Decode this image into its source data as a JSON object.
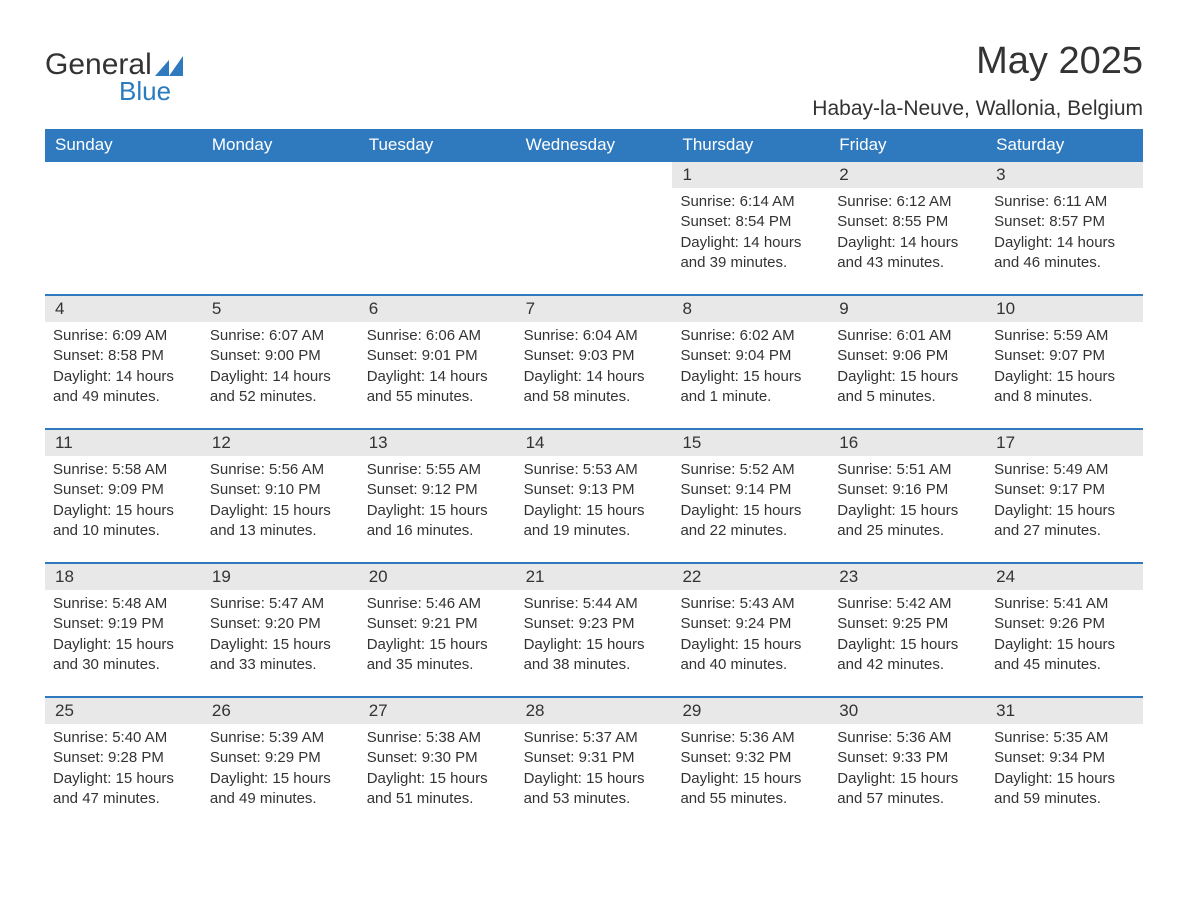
{
  "logo": {
    "word1": "General",
    "word2": "Blue",
    "icon_color": "#2f7abf"
  },
  "title": "May 2025",
  "subtitle": "Habay-la-Neuve, Wallonia, Belgium",
  "colors": {
    "header_bg": "#2f7abf",
    "header_text": "#ffffff",
    "row_divider": "#2f7abf",
    "daynum_bg": "#e8e8e8",
    "text": "#333333",
    "background": "#ffffff"
  },
  "typography": {
    "title_fontsize": 38,
    "subtitle_fontsize": 21,
    "dayheader_fontsize": 17,
    "daynum_fontsize": 17,
    "details_fontsize": 15
  },
  "day_headers": [
    "Sunday",
    "Monday",
    "Tuesday",
    "Wednesday",
    "Thursday",
    "Friday",
    "Saturday"
  ],
  "labels": {
    "sunrise": "Sunrise:",
    "sunset": "Sunset:",
    "daylight": "Daylight:"
  },
  "weeks": [
    [
      null,
      null,
      null,
      null,
      {
        "day": "1",
        "sunrise": "6:14 AM",
        "sunset": "8:54 PM",
        "daylight": "14 hours and 39 minutes."
      },
      {
        "day": "2",
        "sunrise": "6:12 AM",
        "sunset": "8:55 PM",
        "daylight": "14 hours and 43 minutes."
      },
      {
        "day": "3",
        "sunrise": "6:11 AM",
        "sunset": "8:57 PM",
        "daylight": "14 hours and 46 minutes."
      }
    ],
    [
      {
        "day": "4",
        "sunrise": "6:09 AM",
        "sunset": "8:58 PM",
        "daylight": "14 hours and 49 minutes."
      },
      {
        "day": "5",
        "sunrise": "6:07 AM",
        "sunset": "9:00 PM",
        "daylight": "14 hours and 52 minutes."
      },
      {
        "day": "6",
        "sunrise": "6:06 AM",
        "sunset": "9:01 PM",
        "daylight": "14 hours and 55 minutes."
      },
      {
        "day": "7",
        "sunrise": "6:04 AM",
        "sunset": "9:03 PM",
        "daylight": "14 hours and 58 minutes."
      },
      {
        "day": "8",
        "sunrise": "6:02 AM",
        "sunset": "9:04 PM",
        "daylight": "15 hours and 1 minute."
      },
      {
        "day": "9",
        "sunrise": "6:01 AM",
        "sunset": "9:06 PM",
        "daylight": "15 hours and 5 minutes."
      },
      {
        "day": "10",
        "sunrise": "5:59 AM",
        "sunset": "9:07 PM",
        "daylight": "15 hours and 8 minutes."
      }
    ],
    [
      {
        "day": "11",
        "sunrise": "5:58 AM",
        "sunset": "9:09 PM",
        "daylight": "15 hours and 10 minutes."
      },
      {
        "day": "12",
        "sunrise": "5:56 AM",
        "sunset": "9:10 PM",
        "daylight": "15 hours and 13 minutes."
      },
      {
        "day": "13",
        "sunrise": "5:55 AM",
        "sunset": "9:12 PM",
        "daylight": "15 hours and 16 minutes."
      },
      {
        "day": "14",
        "sunrise": "5:53 AM",
        "sunset": "9:13 PM",
        "daylight": "15 hours and 19 minutes."
      },
      {
        "day": "15",
        "sunrise": "5:52 AM",
        "sunset": "9:14 PM",
        "daylight": "15 hours and 22 minutes."
      },
      {
        "day": "16",
        "sunrise": "5:51 AM",
        "sunset": "9:16 PM",
        "daylight": "15 hours and 25 minutes."
      },
      {
        "day": "17",
        "sunrise": "5:49 AM",
        "sunset": "9:17 PM",
        "daylight": "15 hours and 27 minutes."
      }
    ],
    [
      {
        "day": "18",
        "sunrise": "5:48 AM",
        "sunset": "9:19 PM",
        "daylight": "15 hours and 30 minutes."
      },
      {
        "day": "19",
        "sunrise": "5:47 AM",
        "sunset": "9:20 PM",
        "daylight": "15 hours and 33 minutes."
      },
      {
        "day": "20",
        "sunrise": "5:46 AM",
        "sunset": "9:21 PM",
        "daylight": "15 hours and 35 minutes."
      },
      {
        "day": "21",
        "sunrise": "5:44 AM",
        "sunset": "9:23 PM",
        "daylight": "15 hours and 38 minutes."
      },
      {
        "day": "22",
        "sunrise": "5:43 AM",
        "sunset": "9:24 PM",
        "daylight": "15 hours and 40 minutes."
      },
      {
        "day": "23",
        "sunrise": "5:42 AM",
        "sunset": "9:25 PM",
        "daylight": "15 hours and 42 minutes."
      },
      {
        "day": "24",
        "sunrise": "5:41 AM",
        "sunset": "9:26 PM",
        "daylight": "15 hours and 45 minutes."
      }
    ],
    [
      {
        "day": "25",
        "sunrise": "5:40 AM",
        "sunset": "9:28 PM",
        "daylight": "15 hours and 47 minutes."
      },
      {
        "day": "26",
        "sunrise": "5:39 AM",
        "sunset": "9:29 PM",
        "daylight": "15 hours and 49 minutes."
      },
      {
        "day": "27",
        "sunrise": "5:38 AM",
        "sunset": "9:30 PM",
        "daylight": "15 hours and 51 minutes."
      },
      {
        "day": "28",
        "sunrise": "5:37 AM",
        "sunset": "9:31 PM",
        "daylight": "15 hours and 53 minutes."
      },
      {
        "day": "29",
        "sunrise": "5:36 AM",
        "sunset": "9:32 PM",
        "daylight": "15 hours and 55 minutes."
      },
      {
        "day": "30",
        "sunrise": "5:36 AM",
        "sunset": "9:33 PM",
        "daylight": "15 hours and 57 minutes."
      },
      {
        "day": "31",
        "sunrise": "5:35 AM",
        "sunset": "9:34 PM",
        "daylight": "15 hours and 59 minutes."
      }
    ]
  ]
}
